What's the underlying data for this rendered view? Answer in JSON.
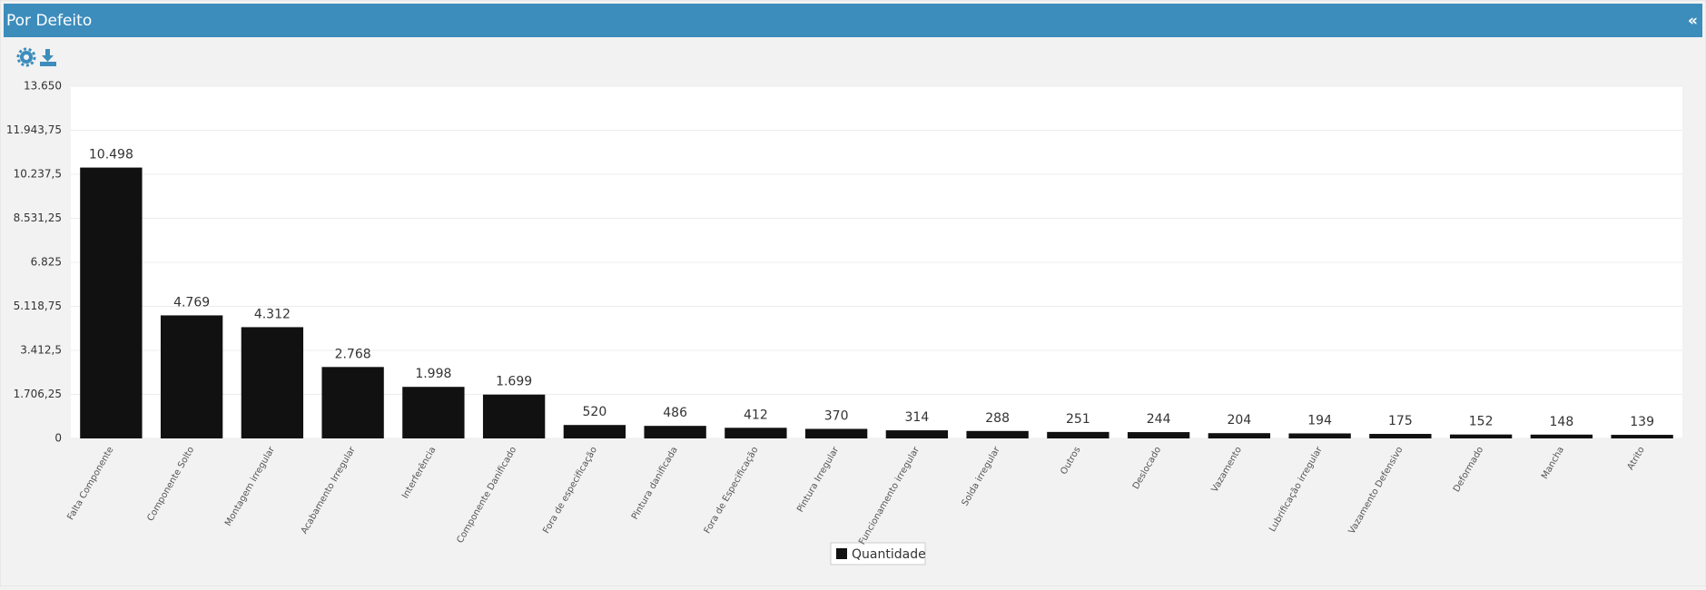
{
  "header": {
    "title": "Por Defeito",
    "collapse": "«"
  },
  "chart_data": {
    "type": "bar",
    "categories": [
      "Falta Componente",
      "Componente Solto",
      "Montagem irregular",
      "Acabamento Irregular",
      "Interferência",
      "Componente Danificado",
      "Fora de especificação",
      "Pintura danificada",
      "Fora de Especificação",
      "Pintura Irregular",
      "Funcionamento irregular",
      "Solda irregular",
      "Outros",
      "Deslocado",
      "Vazamento",
      "Lubrificação irregular",
      "Vazamento Defensivo",
      "Deformado",
      "Mancha",
      "Atrito"
    ],
    "series": [
      {
        "name": "Quantidade",
        "color": "#111111",
        "values": [
          10498,
          4769,
          4312,
          2768,
          1998,
          1699,
          520,
          486,
          412,
          370,
          314,
          288,
          251,
          244,
          204,
          194,
          175,
          152,
          148,
          139
        ],
        "value_labels": [
          "10.498",
          "4.769",
          "4.312",
          "2.768",
          "1.998",
          "1.699",
          "520",
          "486",
          "412",
          "370",
          "314",
          "288",
          "251",
          "244",
          "204",
          "194",
          "175",
          "152",
          "148",
          "139"
        ]
      }
    ],
    "ylim": [
      0,
      13650
    ],
    "yticks": [
      0,
      {
        "value": 1706.25,
        "label": "1.706,25"
      },
      {
        "value": 3412.5,
        "label": "3.412,5"
      },
      {
        "value": 5118.75,
        "label": "5.118,75"
      },
      {
        "value": 6825,
        "label": "6.825"
      },
      {
        "value": 8531.25,
        "label": "8.531,25"
      },
      {
        "value": 10237.5,
        "label": "10.237,5"
      },
      {
        "value": 11943.75,
        "label": "11.943,75"
      },
      {
        "value": 13650,
        "label": "13.650"
      }
    ],
    "grid": true
  }
}
